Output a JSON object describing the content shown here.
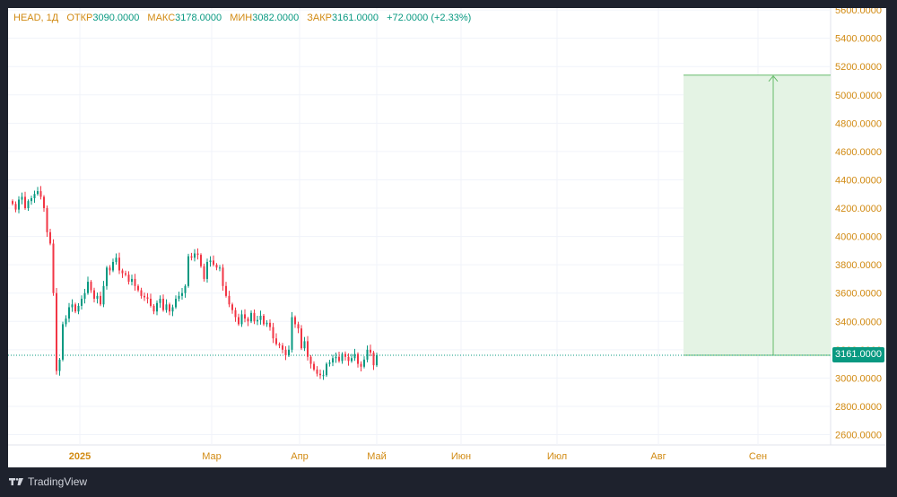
{
  "legend": {
    "symbol": "HEAD, 1Д",
    "open_label": "ОТКР",
    "open": "3090.0000",
    "high_label": "МАКС",
    "high": "3178.0000",
    "low_label": "МИН",
    "low": "3082.0000",
    "close_label": "ЗАКР",
    "close": "3161.0000",
    "change": "+72.0000 (+2.33%)"
  },
  "price_tag": "3161.0000",
  "brand": "TradingView",
  "colors": {
    "up": "#089981",
    "down": "#f23645",
    "projection_fill": "#e4f3e4",
    "projection_line": "#66bb6a",
    "label_text": "#d18a12"
  },
  "chart_data": {
    "type": "candlestick",
    "y_ticks": [
      "2600.0000",
      "2800.0000",
      "3000.0000",
      "3200.0000",
      "3400.0000",
      "3600.0000",
      "3800.0000",
      "4000.0000",
      "4200.0000",
      "4400.0000",
      "4600.0000",
      "4800.0000",
      "5000.0000",
      "5200.0000",
      "5400.0000",
      "5600.0000"
    ],
    "x_ticks": [
      "2025",
      "Мар",
      "Апр",
      "Май",
      "Июн",
      "Июл",
      "Авг",
      "Сен"
    ],
    "ylim": [
      2530,
      5610
    ],
    "last_close": 3161,
    "projection": {
      "from": 3161,
      "to": 5140
    },
    "closes": [
      4230,
      4190,
      4260,
      4280,
      4200,
      4250,
      4270,
      4300,
      4320,
      4280,
      4200,
      4030,
      3950,
      3600,
      3050,
      3130,
      3380,
      3420,
      3500,
      3520,
      3470,
      3510,
      3560,
      3600,
      3680,
      3620,
      3560,
      3580,
      3520,
      3650,
      3780,
      3760,
      3820,
      3850,
      3760,
      3740,
      3730,
      3680,
      3700,
      3650,
      3620,
      3580,
      3570,
      3560,
      3510,
      3470,
      3530,
      3560,
      3480,
      3520,
      3470,
      3500,
      3560,
      3580,
      3600,
      3650,
      3860,
      3850,
      3880,
      3870,
      3790,
      3700,
      3820,
      3830,
      3800,
      3780,
      3780,
      3650,
      3580,
      3520,
      3480,
      3430,
      3380,
      3450,
      3420,
      3400,
      3460,
      3400,
      3410,
      3440,
      3380,
      3390,
      3360,
      3280,
      3240,
      3230,
      3200,
      3160,
      3200,
      3430,
      3380,
      3350,
      3210,
      3260,
      3150,
      3100,
      3060,
      3030,
      3020,
      3020,
      3100,
      3110,
      3140,
      3150,
      3120,
      3170,
      3150,
      3120,
      3140,
      3170,
      3100,
      3080,
      3130,
      3200,
      3180,
      3090,
      3161
    ]
  }
}
